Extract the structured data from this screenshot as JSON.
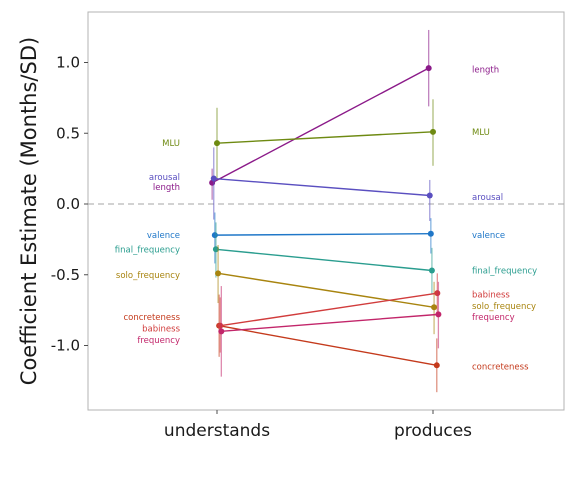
{
  "chart_data": {
    "type": "line",
    "title": "",
    "xlabel": "",
    "ylabel": "Coefficient Estimate (Months/SD)",
    "categories": [
      "understands",
      "produces"
    ],
    "ylim": [
      -1.45,
      1.35
    ],
    "yticks": [
      1.0,
      0.5,
      0.0,
      -0.5,
      -1.0
    ],
    "ytick_labels": [
      "1.0",
      "0.5",
      "0.0",
      "-0.5",
      "-1.0"
    ],
    "reference_line": 0,
    "grid": false,
    "legend": "none",
    "series": [
      {
        "name": "length",
        "color": "#8b1a89",
        "values": [
          0.15,
          0.96
        ],
        "lower": [
          0.03,
          0.69
        ],
        "upper": [
          0.25,
          1.23
        ],
        "offset": [
          -0.045,
          -0.04
        ]
      },
      {
        "name": "MLU",
        "color": "#6e8a12",
        "values": [
          0.43,
          0.51
        ],
        "lower": [
          0.18,
          0.27
        ],
        "upper": [
          0.68,
          0.74
        ],
        "offset": [
          0.0,
          0.0
        ]
      },
      {
        "name": "arousal",
        "color": "#5a4fc0",
        "values": [
          0.18,
          0.06
        ],
        "lower": [
          -0.11,
          -0.12
        ],
        "upper": [
          0.4,
          0.17
        ],
        "offset": [
          -0.03,
          -0.03
        ]
      },
      {
        "name": "valence",
        "color": "#1f77c8",
        "values": [
          -0.22,
          -0.21
        ],
        "lower": [
          -0.42,
          -0.35
        ],
        "upper": [
          -0.06,
          -0.1
        ],
        "offset": [
          -0.02,
          -0.02
        ]
      },
      {
        "name": "final_frequency",
        "color": "#2a9d8f",
        "values": [
          -0.32,
          -0.47
        ],
        "lower": [
          -0.52,
          -0.64
        ],
        "upper": [
          -0.13,
          -0.31
        ],
        "offset": [
          -0.01,
          -0.01
        ]
      },
      {
        "name": "solo_frequency",
        "color": "#a8840f",
        "values": [
          -0.49,
          -0.73
        ],
        "lower": [
          -0.7,
          -0.92
        ],
        "upper": [
          -0.29,
          -0.55
        ],
        "offset": [
          0.01,
          0.01
        ]
      },
      {
        "name": "concreteness",
        "color": "#c43a1c",
        "values": [
          -0.86,
          -1.14
        ],
        "lower": [
          -1.08,
          -1.33
        ],
        "upper": [
          -0.64,
          -0.95
        ],
        "offset": [
          0.02,
          0.035
        ]
      },
      {
        "name": "babiness",
        "color": "#d13c3c",
        "values": [
          -0.86,
          -0.63
        ],
        "lower": [
          -1.05,
          -0.8
        ],
        "upper": [
          -0.66,
          -0.49
        ],
        "offset": [
          0.03,
          0.04
        ]
      },
      {
        "name": "frequency",
        "color": "#c2266a",
        "values": [
          -0.9,
          -0.78
        ],
        "lower": [
          -1.22,
          -1.02
        ],
        "upper": [
          -0.58,
          -0.55
        ],
        "offset": [
          0.04,
          0.05
        ]
      }
    ],
    "left_labels": [
      {
        "text": "MLU",
        "series": "MLU",
        "y": 0.43
      },
      {
        "text": "arousal",
        "series": "arousal",
        "y": 0.19
      },
      {
        "text": "length",
        "series": "length",
        "y": 0.12
      },
      {
        "text": "valence",
        "series": "valence",
        "y": -0.22
      },
      {
        "text": "final_frequency",
        "series": "final_frequency",
        "y": -0.32
      },
      {
        "text": "solo_frequency",
        "series": "solo_frequency",
        "y": -0.5
      },
      {
        "text": "concreteness",
        "series": "concreteness",
        "y": -0.8
      },
      {
        "text": "babiness",
        "series": "babiness",
        "y": -0.88
      },
      {
        "text": "frequency",
        "series": "frequency",
        "y": -0.96
      }
    ],
    "right_labels": [
      {
        "text": "length",
        "series": "length",
        "y": 0.95
      },
      {
        "text": "MLU",
        "series": "MLU",
        "y": 0.51
      },
      {
        "text": "arousal",
        "series": "arousal",
        "y": 0.05
      },
      {
        "text": "valence",
        "series": "valence",
        "y": -0.22
      },
      {
        "text": "final_frequency",
        "series": "final_frequency",
        "y": -0.47
      },
      {
        "text": "babiness",
        "series": "babiness",
        "y": -0.64
      },
      {
        "text": "solo_frequency",
        "series": "solo_frequency",
        "y": -0.72
      },
      {
        "text": "frequency",
        "series": "frequency",
        "y": -0.8
      },
      {
        "text": "concreteness",
        "series": "concreteness",
        "y": -1.15
      }
    ]
  }
}
